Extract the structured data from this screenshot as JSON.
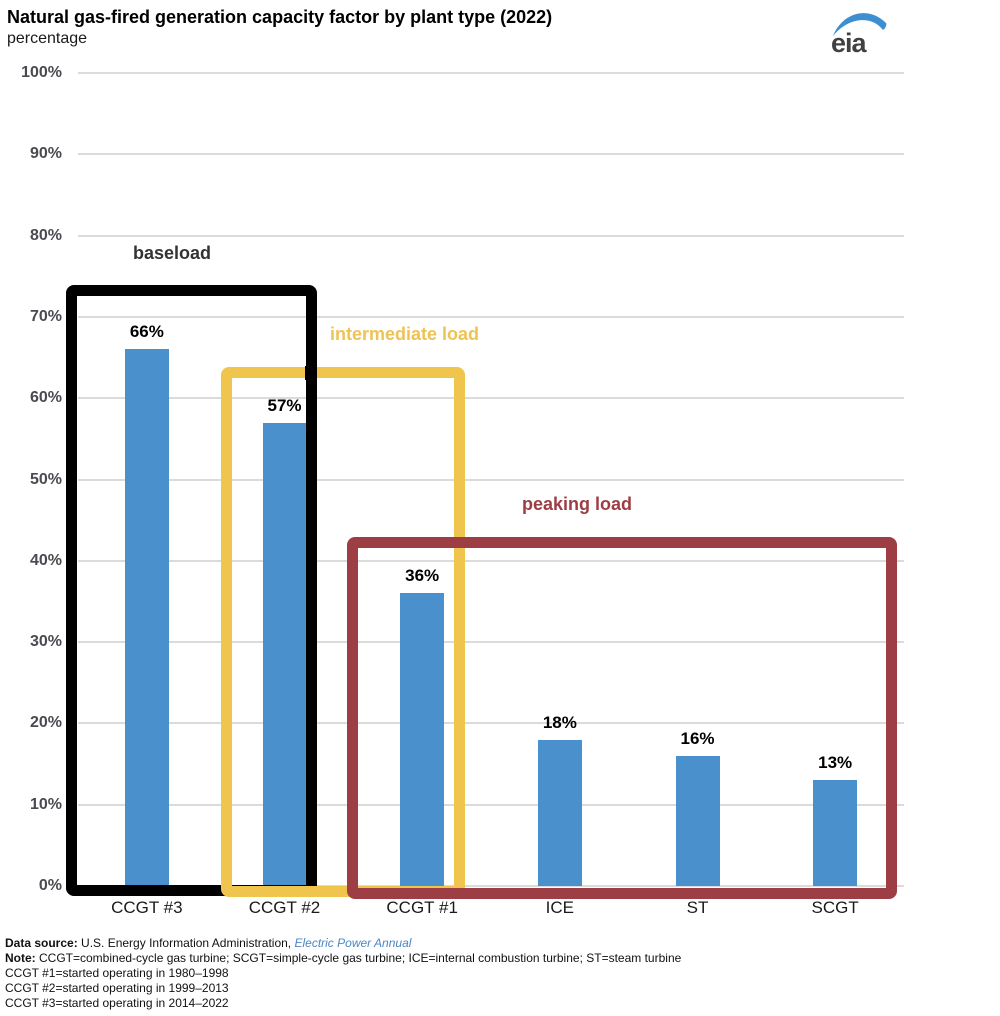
{
  "header": {
    "title": "Natural gas-fired generation capacity factor by plant type (2022)",
    "subtitle": "percentage",
    "logo_text": "eia"
  },
  "chart_data": {
    "type": "bar",
    "title": "Natural gas-fired generation capacity factor by plant type (2022)",
    "ylabel": "percentage",
    "xlabel": "",
    "ylim": [
      0,
      100
    ],
    "ytick_step": 10,
    "ytick_labels": [
      "100%",
      "90%",
      "80%",
      "70%",
      "60%",
      "50%",
      "40%",
      "30%",
      "20%",
      "10%",
      "0%"
    ],
    "grid": true,
    "categories": [
      "CCGT #3",
      "CCGT #2",
      "CCGT #1",
      "ICE",
      "ST",
      "SCGT"
    ],
    "values": [
      66,
      57,
      36,
      18,
      16,
      13
    ],
    "value_labels": [
      "66%",
      "57%",
      "36%",
      "18%",
      "16%",
      "13%"
    ],
    "bar_color": "#4A90CC",
    "gridline_color": "#DBDBDB",
    "annotations": [
      {
        "label": "baseload",
        "color": "#000000",
        "text_color": "#333333",
        "covers": [
          "CCGT #3",
          "CCGT #2"
        ]
      },
      {
        "label": "intermediate load",
        "color": "#F0C54E",
        "text_color": "#EFC353",
        "covers": [
          "CCGT #2",
          "CCGT #1"
        ]
      },
      {
        "label": "peaking load",
        "color": "#9C3E44",
        "text_color": "#9C3E44",
        "covers": [
          "CCGT #1",
          "ICE",
          "ST",
          "SCGT"
        ]
      }
    ]
  },
  "footer": {
    "source_label": "Data source:",
    "source_text": " U.S. Energy Information Administration, ",
    "source_link": "Electric Power Annual",
    "note_label": "Note:",
    "note_text": " CCGT=combined-cycle gas turbine; SCGT=simple-cycle gas turbine; ICE=internal combustion turbine; ST=steam turbine",
    "footnotes": [
      "CCGT #1=started operating in 1980–1998",
      "CCGT #2=started operating in 1999–2013",
      "CCGT #3=started operating in 2014–2022"
    ]
  },
  "colors": {
    "bar": "#4A90CC",
    "gridline": "#DBDBDB",
    "axis_label": "#4A4A50",
    "baseload_box": "#000000",
    "intermediate_box": "#F0C54E",
    "peaking_box": "#9C3E44",
    "link": "#4D86C5",
    "logo_swoosh": "#3E8FD0"
  }
}
